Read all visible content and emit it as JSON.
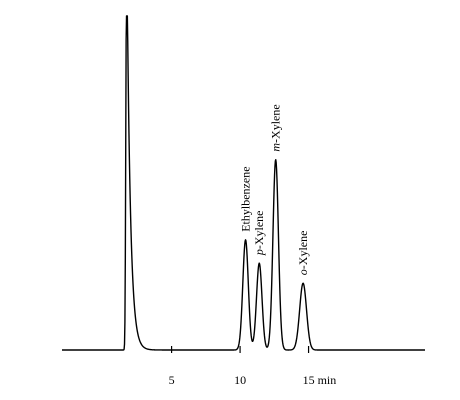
{
  "chart_data": {
    "type": "line",
    "title": "",
    "xlabel": "",
    "ylabel": "",
    "xlim": [
      -3.0,
      23.5
    ],
    "ylim": [
      0,
      100
    ],
    "x_unit": "min",
    "x_ticks": [
      {
        "value": 5,
        "label": "5"
      },
      {
        "value": 10,
        "label": "10"
      },
      {
        "value": 15,
        "label": "15 min"
      }
    ],
    "baseline": 0,
    "peaks": [
      {
        "name": "solvent",
        "retention_time": 1.7,
        "height": 100,
        "width": 0.08,
        "tail": 0.25,
        "label_prefix": "",
        "label_rest": ""
      },
      {
        "name": "Ethylbenzene",
        "retention_time": 10.4,
        "height": 33,
        "width": 0.2,
        "tail": 0,
        "label_prefix": "",
        "label_rest": "Ethylbenzene"
      },
      {
        "name": "p-Xylene",
        "retention_time": 11.4,
        "height": 26,
        "width": 0.2,
        "tail": 0,
        "label_prefix": "p",
        "label_rest": "-Xylene"
      },
      {
        "name": "m-Xylene",
        "retention_time": 12.6,
        "height": 57,
        "width": 0.2,
        "tail": 0,
        "label_prefix": "m",
        "label_rest": "-Xylene"
      },
      {
        "name": "o-Xylene",
        "retention_time": 14.6,
        "height": 20,
        "width": 0.25,
        "tail": 0,
        "label_prefix": "o",
        "label_rest": "-Xylene"
      }
    ]
  }
}
